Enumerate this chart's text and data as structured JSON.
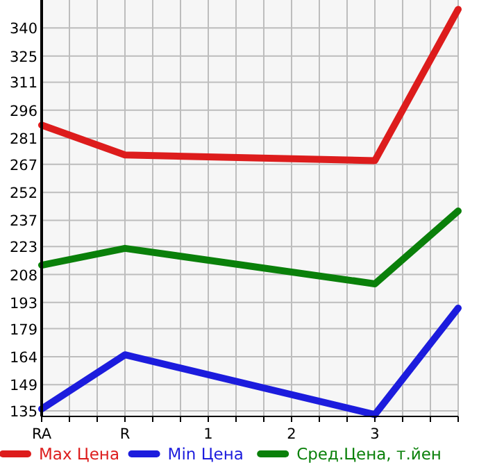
{
  "chart_data": {
    "type": "line",
    "categories": [
      "RA",
      "R",
      "1",
      "2",
      "3",
      null
    ],
    "series": [
      {
        "name": "Max Цена",
        "color": "#dd1c1c",
        "values": [
          288,
          272,
          null,
          null,
          269,
          350
        ]
      },
      {
        "name": "Min Цена",
        "color": "#1c1cdd",
        "values": [
          136,
          165,
          null,
          null,
          133,
          190
        ]
      },
      {
        "name": "Сред.Цена, т.йен",
        "color": "#0a800a",
        "values": [
          213,
          222,
          null,
          null,
          203,
          242
        ]
      }
    ],
    "ylim": [
      132,
      355
    ],
    "yticks": [
      135,
      149,
      164,
      179,
      193,
      208,
      223,
      237,
      252,
      267,
      281,
      296,
      311,
      325,
      340
    ],
    "grid": true,
    "legend": "bottom",
    "marker": "none",
    "line_style": "solid"
  }
}
